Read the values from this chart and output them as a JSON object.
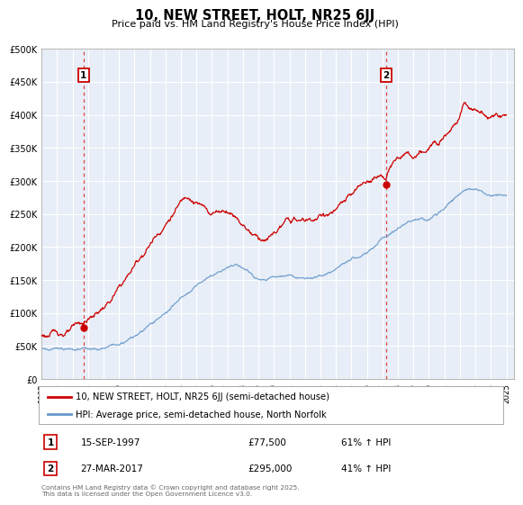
{
  "title": "10, NEW STREET, HOLT, NR25 6JJ",
  "subtitle": "Price paid vs. HM Land Registry's House Price Index (HPI)",
  "xlim": [
    1995,
    2025.5
  ],
  "ylim": [
    0,
    500000
  ],
  "yticks": [
    0,
    50000,
    100000,
    150000,
    200000,
    250000,
    300000,
    350000,
    400000,
    450000,
    500000
  ],
  "ytick_labels": [
    "£0",
    "£50K",
    "£100K",
    "£150K",
    "£200K",
    "£250K",
    "£300K",
    "£350K",
    "£400K",
    "£450K",
    "£500K"
  ],
  "xticks": [
    1995,
    1996,
    1997,
    1998,
    1999,
    2000,
    2001,
    2002,
    2003,
    2004,
    2005,
    2006,
    2007,
    2008,
    2009,
    2010,
    2011,
    2012,
    2013,
    2014,
    2015,
    2016,
    2017,
    2018,
    2019,
    2020,
    2021,
    2022,
    2023,
    2024,
    2025
  ],
  "marker1_x": 1997.71,
  "marker1_y": 77500,
  "marker2_x": 2017.24,
  "marker2_y": 295000,
  "legend_line1": "10, NEW STREET, HOLT, NR25 6JJ (semi-detached house)",
  "legend_line2": "HPI: Average price, semi-detached house, North Norfolk",
  "footer": "Contains HM Land Registry data © Crown copyright and database right 2025.\nThis data is licensed under the Open Government Licence v3.0.",
  "line1_color": "#cc0000",
  "line2_color": "#6699cc",
  "marker_vline_color": "#dd4444",
  "bg_color": "#ffffff",
  "plot_bg_color": "#e8eef7",
  "grid_color": "#ffffff"
}
